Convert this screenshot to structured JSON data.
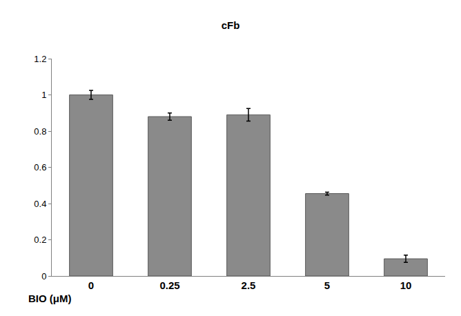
{
  "chart_data": {
    "type": "bar",
    "title": "cFb",
    "x_label": "BIO (μM)",
    "categories": [
      "0",
      "0.25",
      "2.5",
      "5",
      "10"
    ],
    "values": [
      1.0,
      0.88,
      0.89,
      0.455,
      0.095
    ],
    "errors": [
      0.025,
      0.02,
      0.035,
      0.008,
      0.02
    ],
    "color": "#8a8a8a",
    "ylim": [
      0,
      1.2
    ],
    "yticks": [
      0,
      0.2,
      0.4,
      0.6,
      0.8,
      1,
      1.2
    ],
    "grid": false
  }
}
